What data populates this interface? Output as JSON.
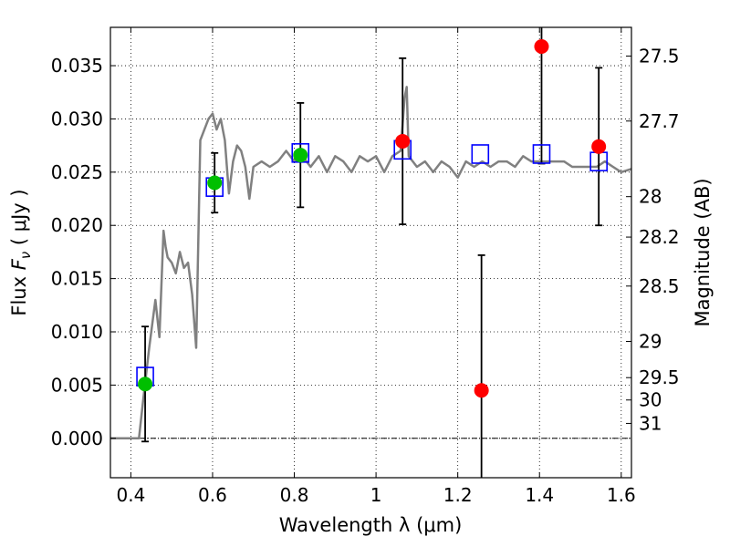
{
  "chart_data": {
    "type": "scatter",
    "xlabel": "Wavelength  λ (μm)",
    "ylabel": "Flux  F_ν  ( μJy )",
    "ylabel_parts": {
      "prefix": "Flux  ",
      "symbol": "F",
      "subscript": "ν",
      "suffix": "  ( μJy )"
    },
    "y2label": "Magnitude (AB)",
    "xlim": [
      0.35,
      1.625
    ],
    "ylim": [
      -0.0037,
      0.0386
    ],
    "grid": true,
    "x_ticks": [
      {
        "value": 0.4,
        "label": "0.4"
      },
      {
        "value": 0.6,
        "label": "0.6"
      },
      {
        "value": 0.8,
        "label": "0.8"
      },
      {
        "value": 1.0,
        "label": "1"
      },
      {
        "value": 1.2,
        "label": "1.2"
      },
      {
        "value": 1.4,
        "label": "1.4"
      },
      {
        "value": 1.6,
        "label": "1.6"
      }
    ],
    "y_ticks": [
      {
        "value": 0.0,
        "label": "0.000"
      },
      {
        "value": 0.005,
        "label": "0.005"
      },
      {
        "value": 0.01,
        "label": "0.010"
      },
      {
        "value": 0.015,
        "label": "0.015"
      },
      {
        "value": 0.02,
        "label": "0.020"
      },
      {
        "value": 0.025,
        "label": "0.025"
      },
      {
        "value": 0.03,
        "label": "0.030"
      },
      {
        "value": 0.035,
        "label": "0.035"
      }
    ],
    "y2_ticks": [
      {
        "label": "27.5",
        "flux": 0.0359
      },
      {
        "label": "27.7",
        "flux": 0.0298
      },
      {
        "label": "28",
        "flux": 0.0227
      },
      {
        "label": "28.2",
        "flux": 0.0189
      },
      {
        "label": "28.5",
        "flux": 0.0143
      },
      {
        "label": "29",
        "flux": 0.0091
      },
      {
        "label": "29.5",
        "flux": 0.0057
      },
      {
        "label": "30",
        "flux": 0.0036
      },
      {
        "label": "31",
        "flux": 0.0014
      }
    ],
    "series": [
      {
        "kind": "line",
        "color": "#808080",
        "x": [
          0.35,
          0.42,
          0.43,
          0.445,
          0.46,
          0.47,
          0.48,
          0.485,
          0.49,
          0.5,
          0.51,
          0.52,
          0.53,
          0.54,
          0.55,
          0.56,
          0.57,
          0.58,
          0.59,
          0.6,
          0.61,
          0.62,
          0.63,
          0.64,
          0.65,
          0.66,
          0.67,
          0.68,
          0.69,
          0.7,
          0.72,
          0.74,
          0.76,
          0.78,
          0.8,
          0.82,
          0.84,
          0.86,
          0.88,
          0.9,
          0.92,
          0.94,
          0.96,
          0.98,
          1.0,
          1.02,
          1.04,
          1.06,
          1.07,
          1.075,
          1.08,
          1.09,
          1.1,
          1.12,
          1.14,
          1.16,
          1.18,
          1.2,
          1.22,
          1.24,
          1.26,
          1.28,
          1.3,
          1.32,
          1.34,
          1.36,
          1.38,
          1.4,
          1.42,
          1.44,
          1.46,
          1.48,
          1.5,
          1.52,
          1.54,
          1.56,
          1.58,
          1.6,
          1.625
        ],
        "y": [
          0.0,
          0.0,
          0.0035,
          0.0085,
          0.013,
          0.0095,
          0.0195,
          0.018,
          0.017,
          0.0165,
          0.0155,
          0.0175,
          0.016,
          0.0165,
          0.0135,
          0.0085,
          0.028,
          0.029,
          0.03,
          0.0305,
          0.029,
          0.03,
          0.028,
          0.023,
          0.026,
          0.0275,
          0.027,
          0.0255,
          0.0225,
          0.0255,
          0.026,
          0.0255,
          0.026,
          0.027,
          0.026,
          0.0265,
          0.0255,
          0.0265,
          0.025,
          0.0265,
          0.026,
          0.025,
          0.0265,
          0.026,
          0.0265,
          0.025,
          0.0265,
          0.027,
          0.032,
          0.033,
          0.0265,
          0.026,
          0.0255,
          0.026,
          0.025,
          0.026,
          0.0255,
          0.0245,
          0.026,
          0.0255,
          0.026,
          0.0255,
          0.026,
          0.026,
          0.0255,
          0.0265,
          0.026,
          0.026,
          0.026,
          0.026,
          0.026,
          0.0255,
          0.0255,
          0.0255,
          0.0255,
          0.026,
          0.0255,
          0.025,
          0.0253
        ]
      },
      {
        "kind": "open-square",
        "color": "#0000ff",
        "x": [
          0.435,
          0.605,
          0.815,
          1.065,
          1.255,
          1.405,
          1.545
        ],
        "y": [
          0.0058,
          0.0236,
          0.0268,
          0.0271,
          0.0267,
          0.0267,
          0.026
        ]
      },
      {
        "kind": "dot",
        "color": "#00bf00",
        "x": [
          0.435,
          0.605,
          0.815
        ],
        "y": [
          0.0051,
          0.024,
          0.0266
        ],
        "err": [
          0.0054,
          0.0028,
          0.0049
        ]
      },
      {
        "kind": "dot",
        "color": "#ff0000",
        "x": [
          1.065,
          1.258,
          1.405,
          1.545
        ],
        "y": [
          0.0279,
          0.0045,
          0.0368,
          0.0274
        ],
        "err": [
          0.0078,
          0.0127,
          0.011,
          0.0074
        ]
      }
    ]
  }
}
